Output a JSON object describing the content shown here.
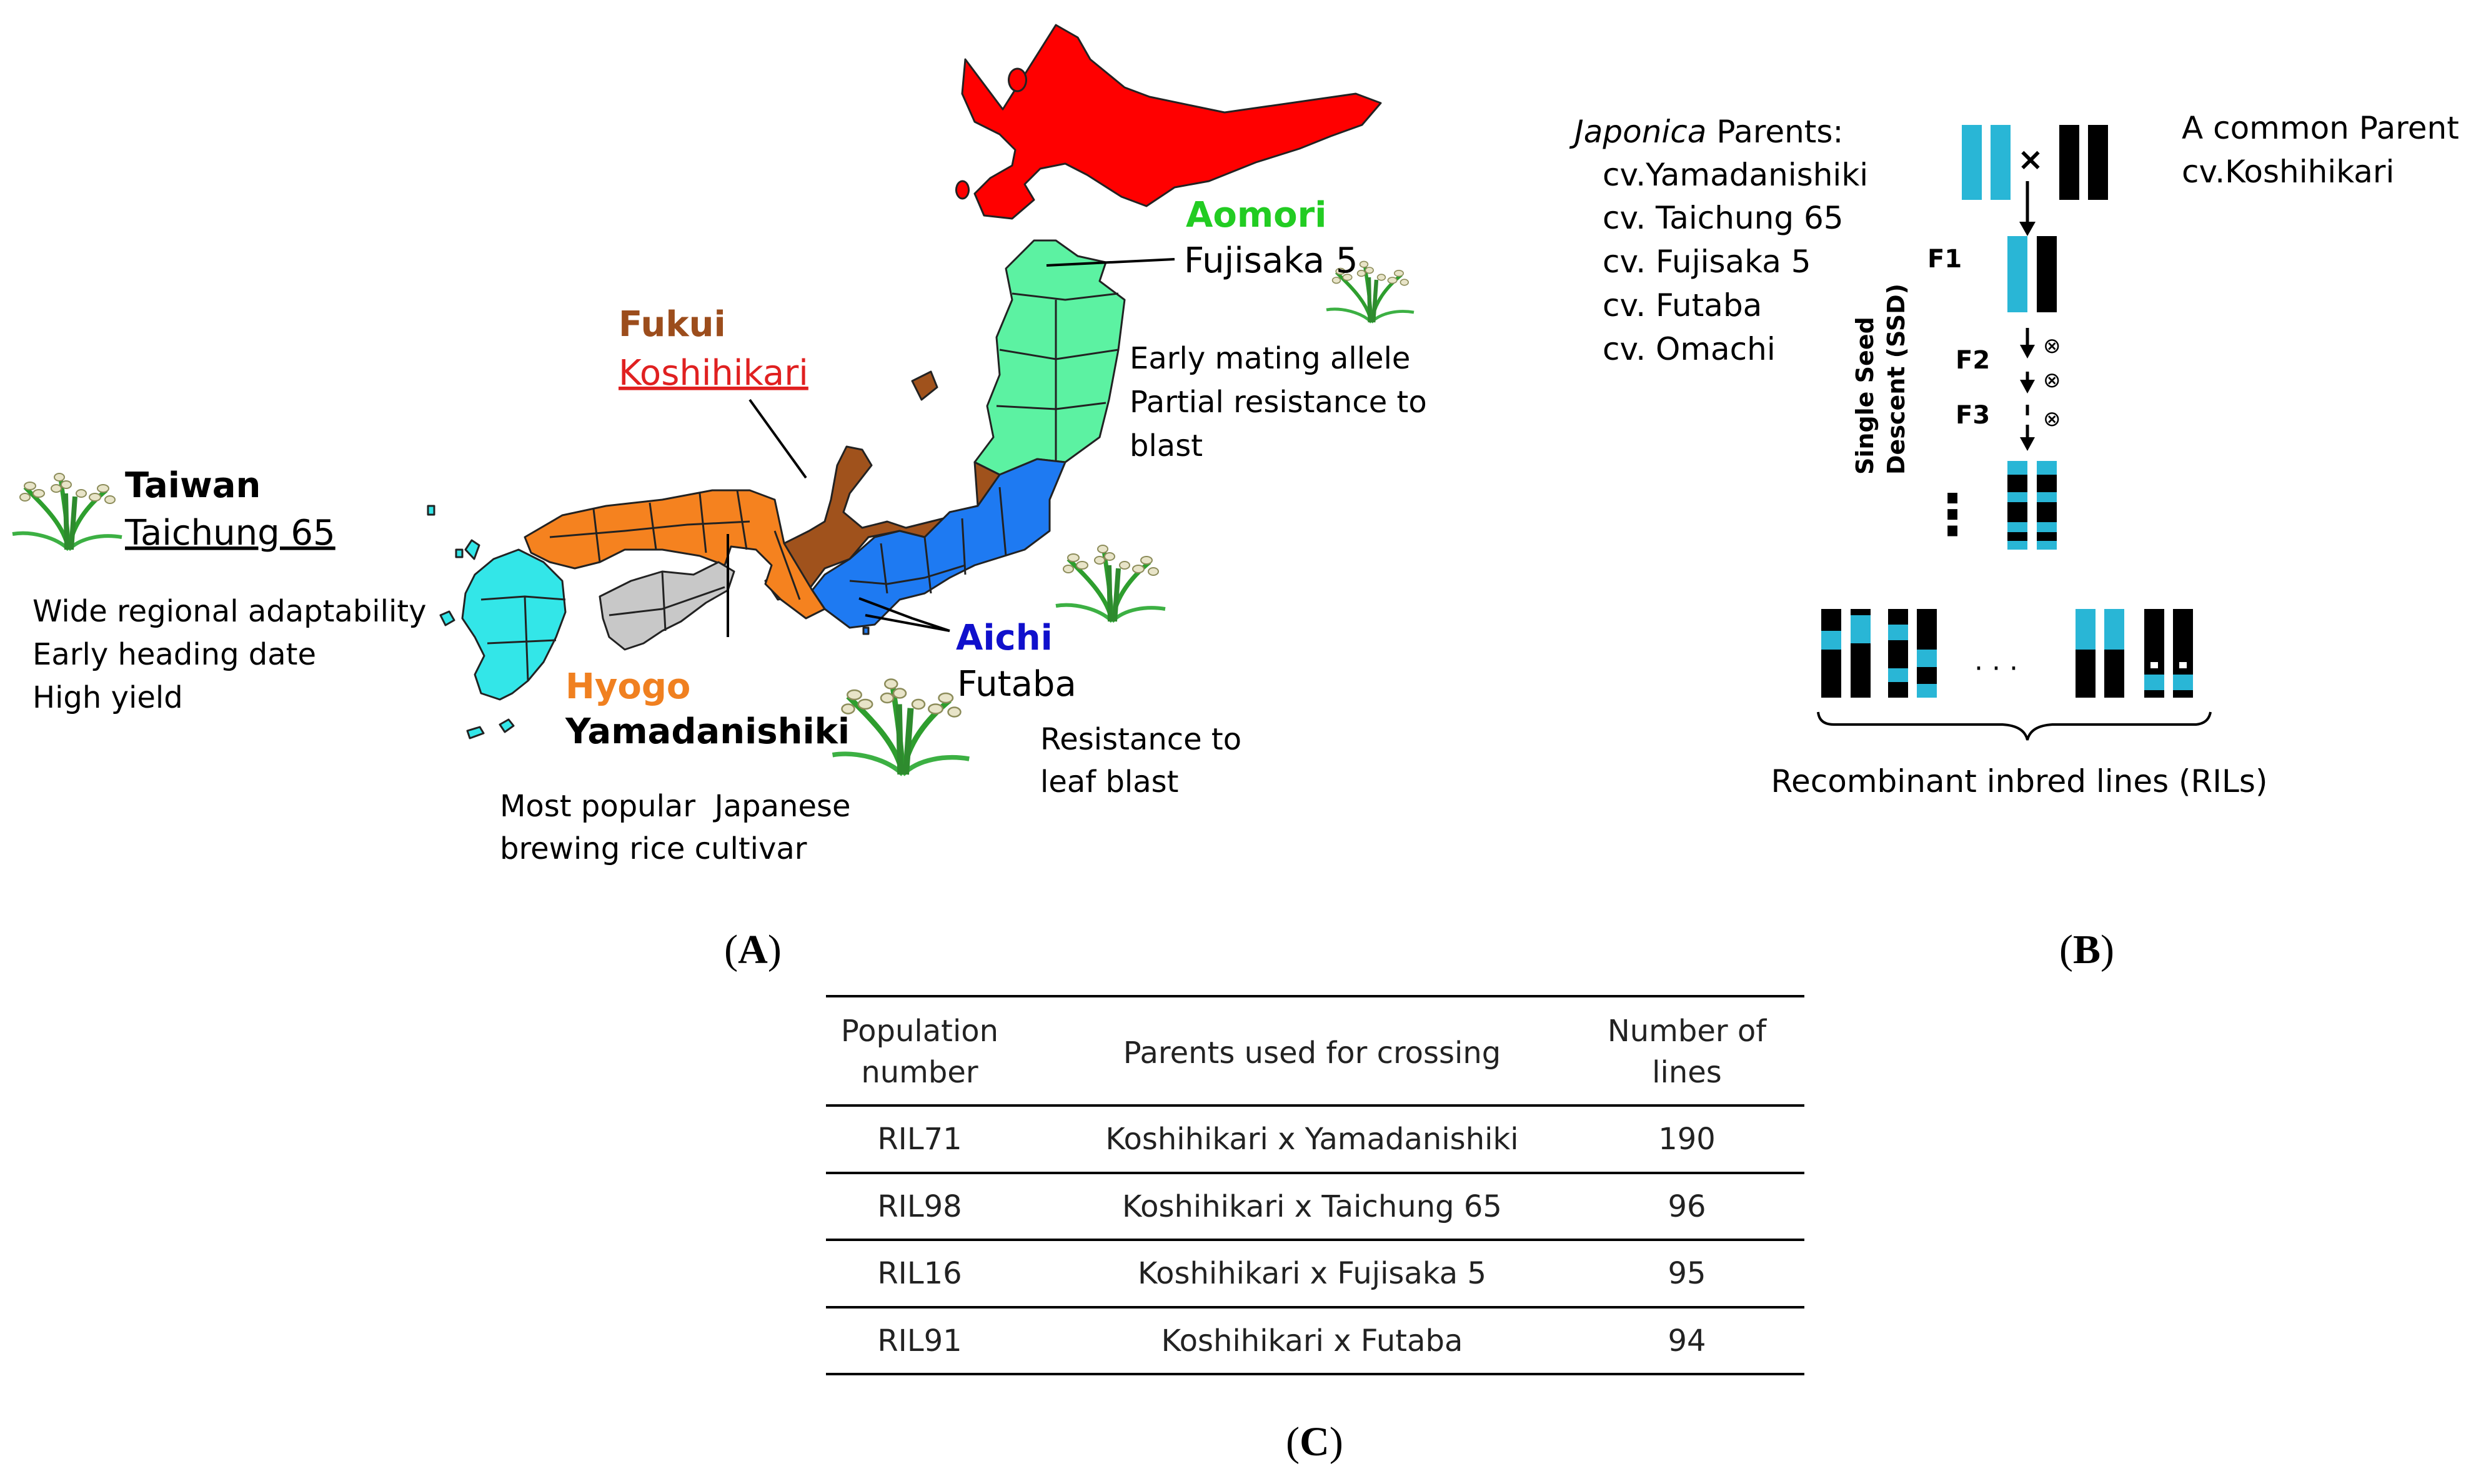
{
  "panels": {
    "a": {
      "letter_open": "(",
      "letter": "A",
      "letter_close": ")",
      "colors": {
        "hokkaido": "#ff0000",
        "tohoku": "#5cf2a2",
        "hokuriku": "#a0521c",
        "chubu": "#1e7af2",
        "kinki": "#f5821f",
        "shikoku": "#c8c8c8",
        "kyushu": "#33e6e8",
        "aomori_label": "#22cc22",
        "fukui_label": "#9c4d1c",
        "aichi_label": "#1010cc",
        "hyogo_label": "#f08020",
        "koshihikari_label": "#e02020"
      },
      "taiwan": {
        "region": "Taiwan",
        "cultivar": "Taichung 65",
        "traits": [
          "Wide regional adaptability",
          "Early heading date",
          "High yield"
        ]
      },
      "aomori": {
        "region": "Aomori",
        "cultivar": "Fujisaka 5",
        "traits": [
          "Early mating allele",
          "Partial resistance to",
          "blast"
        ]
      },
      "fukui": {
        "region": "Fukui",
        "cultivar": "Koshihikari"
      },
      "aichi": {
        "region": "Aichi",
        "cultivar": "Futaba",
        "traits": [
          "Resistance to",
          "leaf blast"
        ]
      },
      "hyogo": {
        "region": "Hyogo",
        "cultivar": "Yamadanishiki",
        "traits": [
          "Most popular  Japanese",
          "brewing rice cultivar"
        ]
      },
      "icons": [
        "rice-plant-icon",
        "rice-plant-icon",
        "rice-plant-icon",
        "rice-plant-icon"
      ]
    },
    "b": {
      "letter_open": "(",
      "letter": "B",
      "letter_close": ")",
      "parents_title_italic": "Japonica",
      "parents_title_rest": " Parents:",
      "parents": [
        "cv.Yamadanishiki",
        "cv. Taichung 65",
        "cv. Fujisaka 5",
        "cv. Futaba",
        "cv. Omachi"
      ],
      "common_parent": [
        "A common Parent",
        "cv.Koshihikari"
      ],
      "cross_symbol": "×",
      "generations": [
        "F1",
        "F2",
        "F3"
      ],
      "selfing_symbol": "⊗",
      "ssd_label": [
        "Single Seed",
        "Descent (SSD)"
      ],
      "ellipsis_vertical": "⋮",
      "ellipsis": "· · ·",
      "ril_label": "Recombinant inbred lines (RILs)",
      "colors": {
        "cyan": "#29b6d6",
        "black": "#000000"
      }
    },
    "c": {
      "letter_open": "(",
      "letter": "C",
      "letter_close": ")",
      "table": {
        "headers": [
          [
            "Population",
            "number"
          ],
          [
            "Parents used for crossing"
          ],
          [
            "Number of",
            "lines"
          ]
        ],
        "rows": [
          [
            "RIL71",
            "Koshihikari x Yamadanishiki",
            "190"
          ],
          [
            "RIL98",
            "Koshihikari x Taichung 65",
            "96"
          ],
          [
            "RIL16",
            "Koshihikari x Fujisaka 5",
            "95"
          ],
          [
            "RIL91",
            "Koshihikari x Futaba",
            "94"
          ]
        ]
      }
    }
  }
}
